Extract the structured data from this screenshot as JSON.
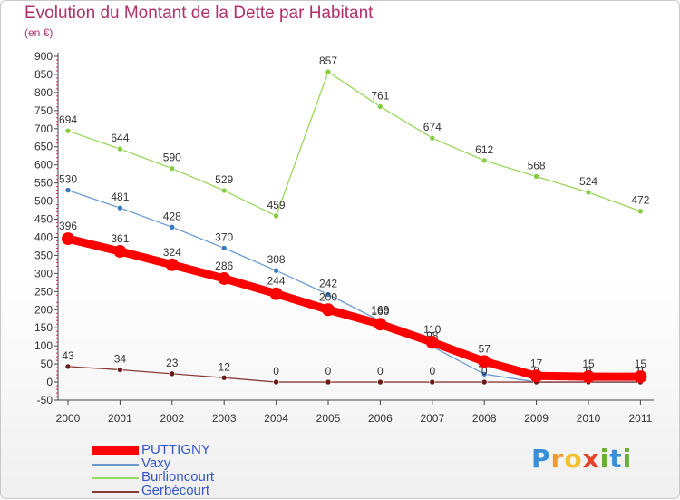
{
  "chart_data": {
    "type": "line",
    "title": "Evolution du Montant de la Dette par Habitant",
    "subtitle": "(en €)",
    "x": [
      "2000",
      "2001",
      "2002",
      "2003",
      "2004",
      "2005",
      "2006",
      "2007",
      "2008",
      "2009",
      "2010",
      "2011"
    ],
    "ylim": [
      -50,
      900
    ],
    "yticks": [
      -50,
      0,
      50,
      100,
      150,
      200,
      250,
      300,
      350,
      400,
      450,
      500,
      550,
      600,
      650,
      700,
      750,
      800,
      850,
      900
    ],
    "grid": false,
    "legend_position": "bottom-left",
    "series": [
      {
        "name": "Burlioncourt",
        "color": "#99d65c",
        "markerColor": "#88cc44",
        "style": "thin",
        "values": [
          694,
          644,
          590,
          529,
          459,
          857,
          761,
          674,
          612,
          568,
          524,
          472
        ],
        "labels": [
          "694",
          "644",
          "590",
          "529",
          "459",
          "857",
          "761",
          "674",
          "612",
          "568",
          "524",
          "472"
        ]
      },
      {
        "name": "Vaxy",
        "color": "#6c9bd2",
        "markerColor": "#3a78c2",
        "style": "thin",
        "values": [
          530,
          481,
          428,
          370,
          308,
          242,
          169,
          98,
          22,
          0,
          0,
          0
        ],
        "labels": [
          "530",
          "481",
          "428",
          "370",
          "308",
          "242",
          "169",
          "98",
          "22",
          "0",
          "0",
          "0"
        ]
      },
      {
        "name": "Gerbécourt",
        "color": "#8b3a3a",
        "markerColor": "#6b1a1a",
        "style": "thin",
        "values": [
          43,
          34,
          23,
          12,
          0,
          0,
          0,
          0,
          0,
          0,
          0,
          0
        ],
        "labels": [
          "43",
          "34",
          "23",
          "12",
          "0",
          "0",
          "0",
          "0",
          "0",
          "0",
          "0",
          "0"
        ]
      },
      {
        "name": "PUTTIGNY",
        "color": "#ff0000",
        "markerColor": "#ff0000",
        "style": "thick",
        "values": [
          396,
          361,
          324,
          286,
          244,
          200,
          160,
          110,
          57,
          17,
          15,
          15
        ],
        "labels": [
          "396",
          "361",
          "324",
          "286",
          "244",
          "200",
          "160",
          "110",
          "57",
          "17",
          "15",
          "15"
        ]
      }
    ]
  },
  "legend": {
    "items": [
      {
        "label": "PUTTIGNY",
        "color": "#ff0000",
        "text_color": "#3355cc",
        "style": "thick"
      },
      {
        "label": "Vaxy",
        "color": "#6c9bd2",
        "text_color": "#3355cc",
        "style": "thin"
      },
      {
        "label": "Burlioncourt",
        "color": "#99d65c",
        "text_color": "#3355cc",
        "style": "thin"
      },
      {
        "label": "Gerbécourt",
        "color": "#8b3a3a",
        "text_color": "#3355cc",
        "style": "thin"
      }
    ]
  },
  "logo": {
    "letters": [
      "P",
      "r",
      "o",
      "x",
      "i",
      "t",
      "i"
    ],
    "colors": [
      "#3a8fd6",
      "#f29a2e",
      "#f2c12e",
      "#e8412c",
      "#66b032",
      "#3a8fd6",
      "#66b032"
    ]
  }
}
